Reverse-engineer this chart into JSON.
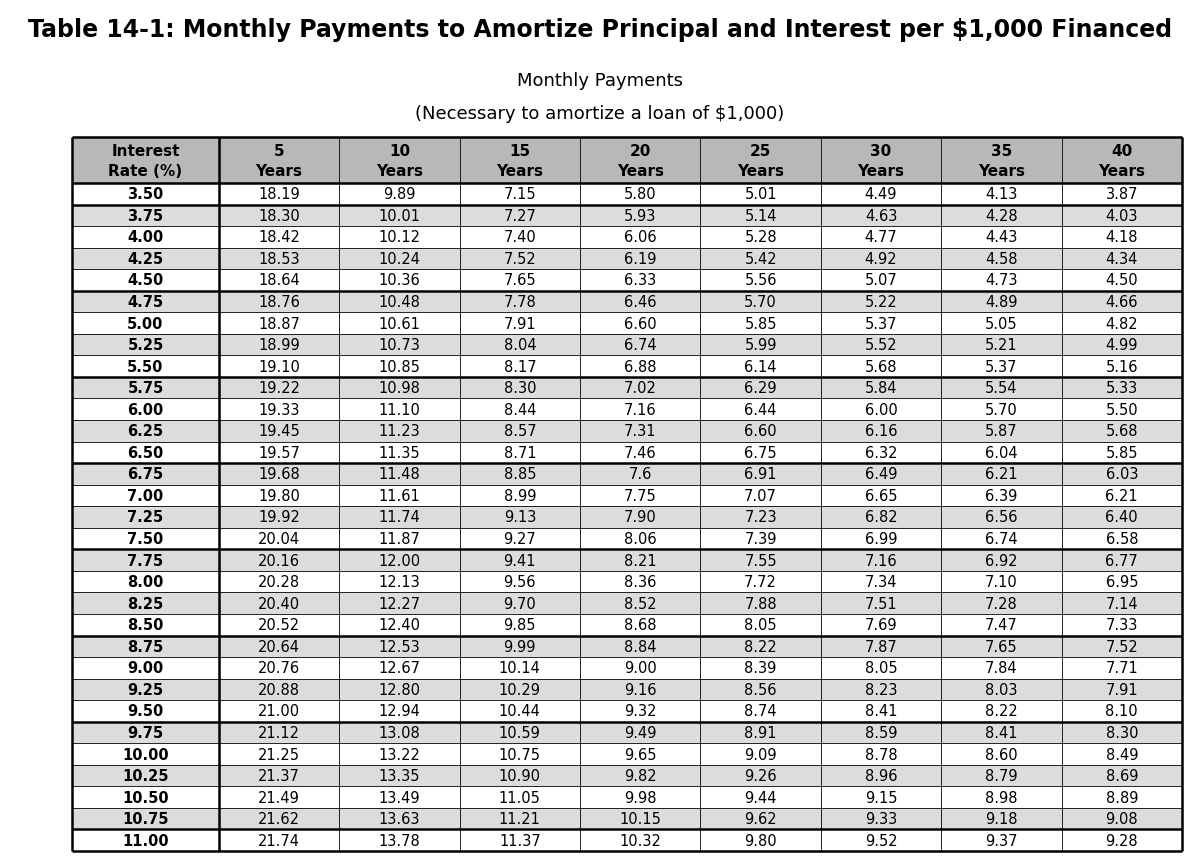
{
  "title": "Table 14-1: Monthly Payments to Amortize Principal and Interest per $1,000 Financed",
  "subtitle_line1": "Monthly Payments",
  "subtitle_line2": "(Necessary to amortize a loan of $1,000)",
  "col_headers_line1": [
    "Interest\nRate (%)",
    "5\nYears",
    "10\nYears",
    "15\nYears",
    "20\nYears",
    "25\nYears",
    "30\nYears",
    "35\nYears",
    "40\nYears"
  ],
  "rows": [
    [
      "3.50",
      "18.19",
      "9.89",
      "7.15",
      "5.80",
      "5.01",
      "4.49",
      "4.13",
      "3.87"
    ],
    [
      "3.75",
      "18.30",
      "10.01",
      "7.27",
      "5.93",
      "5.14",
      "4.63",
      "4.28",
      "4.03"
    ],
    [
      "4.00",
      "18.42",
      "10.12",
      "7.40",
      "6.06",
      "5.28",
      "4.77",
      "4.43",
      "4.18"
    ],
    [
      "4.25",
      "18.53",
      "10.24",
      "7.52",
      "6.19",
      "5.42",
      "4.92",
      "4.58",
      "4.34"
    ],
    [
      "4.50",
      "18.64",
      "10.36",
      "7.65",
      "6.33",
      "5.56",
      "5.07",
      "4.73",
      "4.50"
    ],
    [
      "4.75",
      "18.76",
      "10.48",
      "7.78",
      "6.46",
      "5.70",
      "5.22",
      "4.89",
      "4.66"
    ],
    [
      "5.00",
      "18.87",
      "10.61",
      "7.91",
      "6.60",
      "5.85",
      "5.37",
      "5.05",
      "4.82"
    ],
    [
      "5.25",
      "18.99",
      "10.73",
      "8.04",
      "6.74",
      "5.99",
      "5.52",
      "5.21",
      "4.99"
    ],
    [
      "5.50",
      "19.10",
      "10.85",
      "8.17",
      "6.88",
      "6.14",
      "5.68",
      "5.37",
      "5.16"
    ],
    [
      "5.75",
      "19.22",
      "10.98",
      "8.30",
      "7.02",
      "6.29",
      "5.84",
      "5.54",
      "5.33"
    ],
    [
      "6.00",
      "19.33",
      "11.10",
      "8.44",
      "7.16",
      "6.44",
      "6.00",
      "5.70",
      "5.50"
    ],
    [
      "6.25",
      "19.45",
      "11.23",
      "8.57",
      "7.31",
      "6.60",
      "6.16",
      "5.87",
      "5.68"
    ],
    [
      "6.50",
      "19.57",
      "11.35",
      "8.71",
      "7.46",
      "6.75",
      "6.32",
      "6.04",
      "5.85"
    ],
    [
      "6.75",
      "19.68",
      "11.48",
      "8.85",
      "7.6",
      "6.91",
      "6.49",
      "6.21",
      "6.03"
    ],
    [
      "7.00",
      "19.80",
      "11.61",
      "8.99",
      "7.75",
      "7.07",
      "6.65",
      "6.39",
      "6.21"
    ],
    [
      "7.25",
      "19.92",
      "11.74",
      "9.13",
      "7.90",
      "7.23",
      "6.82",
      "6.56",
      "6.40"
    ],
    [
      "7.50",
      "20.04",
      "11.87",
      "9.27",
      "8.06",
      "7.39",
      "6.99",
      "6.74",
      "6.58"
    ],
    [
      "7.75",
      "20.16",
      "12.00",
      "9.41",
      "8.21",
      "7.55",
      "7.16",
      "6.92",
      "6.77"
    ],
    [
      "8.00",
      "20.28",
      "12.13",
      "9.56",
      "8.36",
      "7.72",
      "7.34",
      "7.10",
      "6.95"
    ],
    [
      "8.25",
      "20.40",
      "12.27",
      "9.70",
      "8.52",
      "7.88",
      "7.51",
      "7.28",
      "7.14"
    ],
    [
      "8.50",
      "20.52",
      "12.40",
      "9.85",
      "8.68",
      "8.05",
      "7.69",
      "7.47",
      "7.33"
    ],
    [
      "8.75",
      "20.64",
      "12.53",
      "9.99",
      "8.84",
      "8.22",
      "7.87",
      "7.65",
      "7.52"
    ],
    [
      "9.00",
      "20.76",
      "12.67",
      "10.14",
      "9.00",
      "8.39",
      "8.05",
      "7.84",
      "7.71"
    ],
    [
      "9.25",
      "20.88",
      "12.80",
      "10.29",
      "9.16",
      "8.56",
      "8.23",
      "8.03",
      "7.91"
    ],
    [
      "9.50",
      "21.00",
      "12.94",
      "10.44",
      "9.32",
      "8.74",
      "8.41",
      "8.22",
      "8.10"
    ],
    [
      "9.75",
      "21.12",
      "13.08",
      "10.59",
      "9.49",
      "8.91",
      "8.59",
      "8.41",
      "8.30"
    ],
    [
      "10.00",
      "21.25",
      "13.22",
      "10.75",
      "9.65",
      "9.09",
      "8.78",
      "8.60",
      "8.49"
    ],
    [
      "10.25",
      "21.37",
      "13.35",
      "10.90",
      "9.82",
      "9.26",
      "8.96",
      "8.79",
      "8.69"
    ],
    [
      "10.50",
      "21.49",
      "13.49",
      "11.05",
      "9.98",
      "9.44",
      "9.15",
      "8.98",
      "8.89"
    ],
    [
      "10.75",
      "21.62",
      "13.63",
      "11.21",
      "10.15",
      "9.62",
      "9.33",
      "9.18",
      "9.08"
    ],
    [
      "11.00",
      "21.74",
      "13.78",
      "11.37",
      "10.32",
      "9.80",
      "9.52",
      "9.37",
      "9.28"
    ]
  ],
  "thick_after_rows": [
    1,
    5,
    9,
    13,
    17,
    21,
    25,
    30
  ],
  "bg_color_light": "#dcdcdc",
  "bg_color_white": "#ffffff",
  "header_bg": "#b8b8b8",
  "title_fontsize": 17,
  "subtitle_fontsize": 13,
  "header_fontsize": 11,
  "cell_fontsize": 10.5,
  "fig_width": 12.0,
  "fig_height": 8.62
}
